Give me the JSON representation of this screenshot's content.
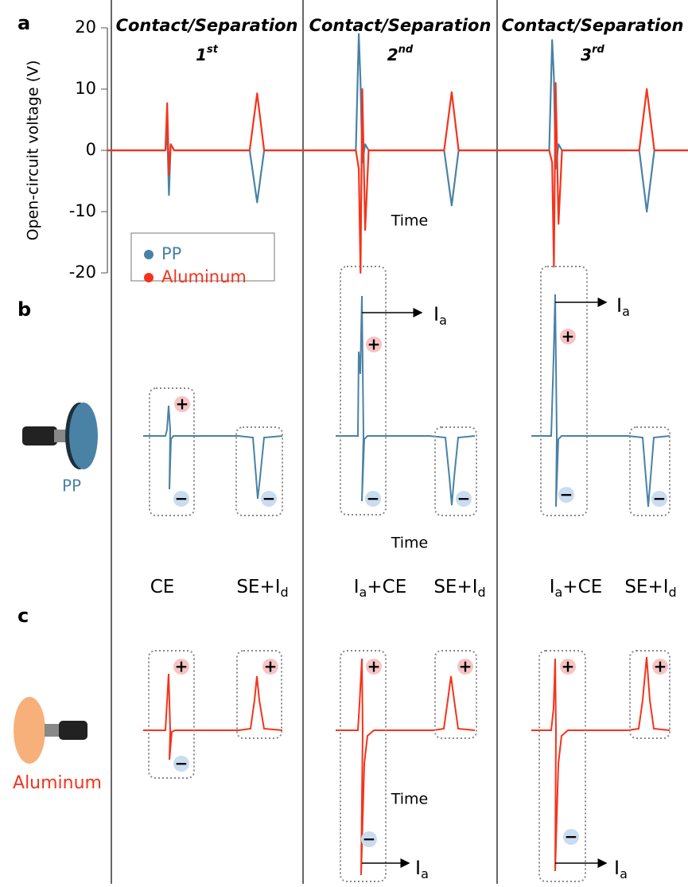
{
  "chart_data": {
    "type": "line",
    "y_label": "Open-circuit voltage (V)",
    "x_label": "Time",
    "x": [
      0,
      10,
      10.3,
      10.6,
      10.9,
      11.5,
      24.5,
      25.8,
      27,
      42.8,
      43.3,
      43.6,
      43.9,
      44.4,
      45,
      58,
      59.3,
      60.5,
      76.1,
      76.6,
      76.9,
      77.2,
      77.7,
      78.3,
      91.6,
      92.9,
      94.2,
      100
    ],
    "xlim": [
      0,
      100
    ],
    "ylim": [
      -20,
      20
    ],
    "yticks": [
      -20,
      -10,
      0,
      10,
      20
    ],
    "series": [
      {
        "name": "PP",
        "color": "#4a82a6",
        "values": [
          0,
          0,
          3.5,
          -7.3,
          1,
          0,
          0,
          -8.5,
          0,
          0,
          19,
          11,
          -2,
          1,
          0,
          0,
          -9,
          0,
          0,
          18,
          12,
          -3,
          1,
          0,
          0,
          -10,
          0,
          0
        ]
      },
      {
        "name": "Aluminum",
        "color": "#f5331c",
        "values": [
          0,
          0,
          7.7,
          -4,
          1,
          0,
          0,
          9.3,
          0,
          0,
          -3,
          -20,
          10,
          -13,
          0,
          0,
          9.5,
          0,
          0,
          -2,
          -19,
          11,
          -12,
          0,
          0,
          10,
          0,
          0
        ]
      }
    ]
  },
  "panel_labels": [
    "a",
    "b",
    "c"
  ],
  "columns": [
    {
      "title": "Contact/Separation",
      "ordinal": "1",
      "suffix": "st"
    },
    {
      "title": "Contact/Separation",
      "ordinal": "2",
      "suffix": "nd"
    },
    {
      "title": "Contact/Separation",
      "ordinal": "3",
      "suffix": "rd"
    }
  ],
  "icons": [
    "PP",
    "Aluminum"
  ],
  "modes": [
    [
      "CE"
    ],
    [
      "SE+I",
      "d"
    ],
    [
      "I",
      "a",
      "+CE"
    ],
    [
      "SE+I",
      "d"
    ],
    [
      "I",
      "a",
      "+CE"
    ],
    [
      "SE+I",
      "d"
    ]
  ],
  "ia": [
    "I",
    "a"
  ],
  "plus": "+",
  "minus": "−"
}
